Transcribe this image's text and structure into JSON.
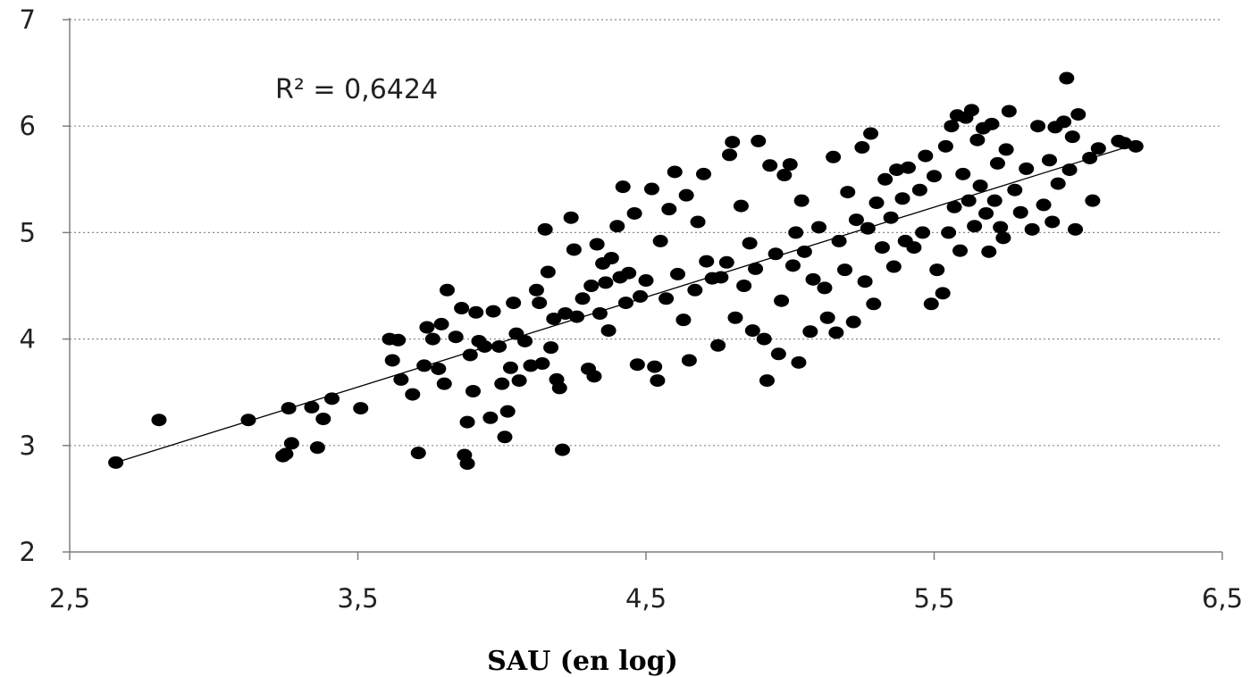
{
  "chart_data": {
    "type": "scatter",
    "title": "",
    "xlabel": "SAU (en log)",
    "ylabel": "",
    "xlim": [
      2.5,
      6.5
    ],
    "ylim": [
      2,
      7
    ],
    "x_ticks": [
      "2,5",
      "3,5",
      "4,5",
      "5,5",
      "6,5"
    ],
    "y_ticks": [
      "2",
      "3",
      "4",
      "5",
      "6",
      "7"
    ],
    "grid": "horizontal dotted",
    "annotation": "R² = 0,6424",
    "marker_color": "#000000",
    "trendline": {
      "type": "linear",
      "from": [
        2.66,
        2.84
      ],
      "to": [
        6.2,
        5.83
      ]
    },
    "points": [
      [
        2.66,
        2.84
      ],
      [
        2.81,
        3.24
      ],
      [
        3.12,
        3.24
      ],
      [
        3.24,
        2.9
      ],
      [
        3.25,
        2.92
      ],
      [
        3.26,
        3.35
      ],
      [
        3.27,
        3.02
      ],
      [
        3.34,
        3.36
      ],
      [
        3.36,
        2.98
      ],
      [
        3.38,
        3.25
      ],
      [
        3.41,
        3.44
      ],
      [
        3.51,
        3.35
      ],
      [
        3.61,
        4.0
      ],
      [
        3.62,
        3.8
      ],
      [
        3.64,
        3.99
      ],
      [
        3.65,
        3.62
      ],
      [
        3.69,
        3.48
      ],
      [
        3.71,
        2.93
      ],
      [
        3.73,
        3.75
      ],
      [
        3.74,
        4.11
      ],
      [
        3.76,
        4.0
      ],
      [
        3.78,
        3.72
      ],
      [
        3.79,
        4.14
      ],
      [
        3.8,
        3.58
      ],
      [
        3.81,
        4.46
      ],
      [
        3.84,
        4.02
      ],
      [
        3.86,
        4.29
      ],
      [
        3.87,
        2.91
      ],
      [
        3.88,
        2.83
      ],
      [
        3.88,
        3.22
      ],
      [
        3.89,
        3.85
      ],
      [
        3.9,
        3.51
      ],
      [
        3.91,
        4.25
      ],
      [
        3.92,
        3.98
      ],
      [
        3.94,
        3.93
      ],
      [
        3.96,
        3.26
      ],
      [
        3.97,
        4.26
      ],
      [
        3.99,
        3.93
      ],
      [
        4.0,
        3.58
      ],
      [
        4.01,
        3.08
      ],
      [
        4.02,
        3.32
      ],
      [
        4.03,
        3.73
      ],
      [
        4.04,
        4.34
      ],
      [
        4.05,
        4.05
      ],
      [
        4.06,
        3.61
      ],
      [
        4.08,
        3.98
      ],
      [
        4.1,
        3.75
      ],
      [
        4.12,
        4.46
      ],
      [
        4.13,
        4.34
      ],
      [
        4.14,
        3.77
      ],
      [
        4.15,
        5.03
      ],
      [
        4.16,
        4.63
      ],
      [
        4.17,
        3.92
      ],
      [
        4.18,
        4.19
      ],
      [
        4.19,
        3.62
      ],
      [
        4.2,
        3.54
      ],
      [
        4.21,
        2.96
      ],
      [
        4.22,
        4.24
      ],
      [
        4.24,
        5.14
      ],
      [
        4.25,
        4.84
      ],
      [
        4.26,
        4.21
      ],
      [
        4.28,
        4.38
      ],
      [
        4.3,
        3.72
      ],
      [
        4.31,
        4.5
      ],
      [
        4.32,
        3.65
      ],
      [
        4.33,
        4.89
      ],
      [
        4.34,
        4.24
      ],
      [
        4.35,
        4.71
      ],
      [
        4.36,
        4.53
      ],
      [
        4.37,
        4.08
      ],
      [
        4.38,
        4.76
      ],
      [
        4.4,
        5.06
      ],
      [
        4.41,
        4.58
      ],
      [
        4.42,
        5.43
      ],
      [
        4.43,
        4.34
      ],
      [
        4.44,
        4.62
      ],
      [
        4.46,
        5.18
      ],
      [
        4.47,
        3.76
      ],
      [
        4.48,
        4.4
      ],
      [
        4.5,
        4.55
      ],
      [
        4.52,
        5.41
      ],
      [
        4.53,
        3.74
      ],
      [
        4.54,
        3.61
      ],
      [
        4.55,
        4.92
      ],
      [
        4.57,
        4.38
      ],
      [
        4.58,
        5.22
      ],
      [
        4.6,
        5.57
      ],
      [
        4.61,
        4.61
      ],
      [
        4.63,
        4.18
      ],
      [
        4.64,
        5.35
      ],
      [
        4.65,
        3.8
      ],
      [
        4.67,
        4.46
      ],
      [
        4.68,
        5.1
      ],
      [
        4.7,
        5.55
      ],
      [
        4.71,
        4.73
      ],
      [
        4.73,
        4.57
      ],
      [
        4.75,
        3.94
      ],
      [
        4.76,
        4.58
      ],
      [
        4.78,
        4.72
      ],
      [
        4.79,
        5.73
      ],
      [
        4.8,
        5.85
      ],
      [
        4.81,
        4.2
      ],
      [
        4.83,
        5.25
      ],
      [
        4.84,
        4.5
      ],
      [
        4.86,
        4.9
      ],
      [
        4.87,
        4.08
      ],
      [
        4.88,
        4.66
      ],
      [
        4.89,
        5.86
      ],
      [
        4.91,
        4.0
      ],
      [
        4.92,
        3.61
      ],
      [
        4.93,
        5.63
      ],
      [
        4.95,
        4.8
      ],
      [
        4.96,
        3.86
      ],
      [
        4.97,
        4.36
      ],
      [
        4.98,
        5.54
      ],
      [
        5.0,
        5.64
      ],
      [
        5.01,
        4.69
      ],
      [
        5.02,
        5.0
      ],
      [
        5.03,
        3.78
      ],
      [
        5.04,
        5.3
      ],
      [
        5.05,
        4.82
      ],
      [
        5.07,
        4.07
      ],
      [
        5.08,
        4.56
      ],
      [
        5.1,
        5.05
      ],
      [
        5.12,
        4.48
      ],
      [
        5.13,
        4.2
      ],
      [
        5.15,
        5.71
      ],
      [
        5.16,
        4.06
      ],
      [
        5.17,
        4.92
      ],
      [
        5.19,
        4.65
      ],
      [
        5.2,
        5.38
      ],
      [
        5.22,
        4.16
      ],
      [
        5.23,
        5.12
      ],
      [
        5.25,
        5.8
      ],
      [
        5.26,
        4.54
      ],
      [
        5.27,
        5.04
      ],
      [
        5.28,
        5.93
      ],
      [
        5.29,
        4.33
      ],
      [
        5.3,
        5.28
      ],
      [
        5.32,
        4.86
      ],
      [
        5.33,
        5.5
      ],
      [
        5.35,
        5.14
      ],
      [
        5.36,
        4.68
      ],
      [
        5.37,
        5.59
      ],
      [
        5.39,
        5.32
      ],
      [
        5.4,
        4.92
      ],
      [
        5.41,
        5.61
      ],
      [
        5.43,
        4.86
      ],
      [
        5.45,
        5.4
      ],
      [
        5.46,
        5.0
      ],
      [
        5.47,
        5.72
      ],
      [
        5.49,
        4.33
      ],
      [
        5.5,
        5.53
      ],
      [
        5.51,
        4.65
      ],
      [
        5.53,
        4.43
      ],
      [
        5.54,
        5.81
      ],
      [
        5.55,
        5.0
      ],
      [
        5.56,
        6.0
      ],
      [
        5.57,
        5.24
      ],
      [
        5.58,
        6.1
      ],
      [
        5.59,
        4.83
      ],
      [
        5.6,
        5.55
      ],
      [
        5.61,
        6.08
      ],
      [
        5.62,
        5.3
      ],
      [
        5.63,
        6.15
      ],
      [
        5.64,
        5.06
      ],
      [
        5.65,
        5.87
      ],
      [
        5.66,
        5.44
      ],
      [
        5.67,
        5.98
      ],
      [
        5.68,
        5.18
      ],
      [
        5.69,
        4.82
      ],
      [
        5.7,
        6.02
      ],
      [
        5.71,
        5.3
      ],
      [
        5.72,
        5.65
      ],
      [
        5.73,
        5.05
      ],
      [
        5.74,
        4.95
      ],
      [
        5.75,
        5.78
      ],
      [
        5.76,
        6.14
      ],
      [
        5.78,
        5.4
      ],
      [
        5.8,
        5.19
      ],
      [
        5.82,
        5.6
      ],
      [
        5.84,
        5.03
      ],
      [
        5.86,
        6.0
      ],
      [
        5.88,
        5.26
      ],
      [
        5.9,
        5.68
      ],
      [
        5.91,
        5.1
      ],
      [
        5.92,
        5.99
      ],
      [
        5.93,
        5.46
      ],
      [
        5.95,
        6.04
      ],
      [
        5.96,
        6.45
      ],
      [
        5.97,
        5.59
      ],
      [
        5.98,
        5.9
      ],
      [
        5.99,
        5.03
      ],
      [
        6.0,
        6.11
      ],
      [
        6.04,
        5.7
      ],
      [
        6.05,
        5.3
      ],
      [
        6.07,
        5.79
      ],
      [
        6.14,
        5.86
      ],
      [
        6.16,
        5.84
      ],
      [
        6.2,
        5.81
      ]
    ]
  }
}
